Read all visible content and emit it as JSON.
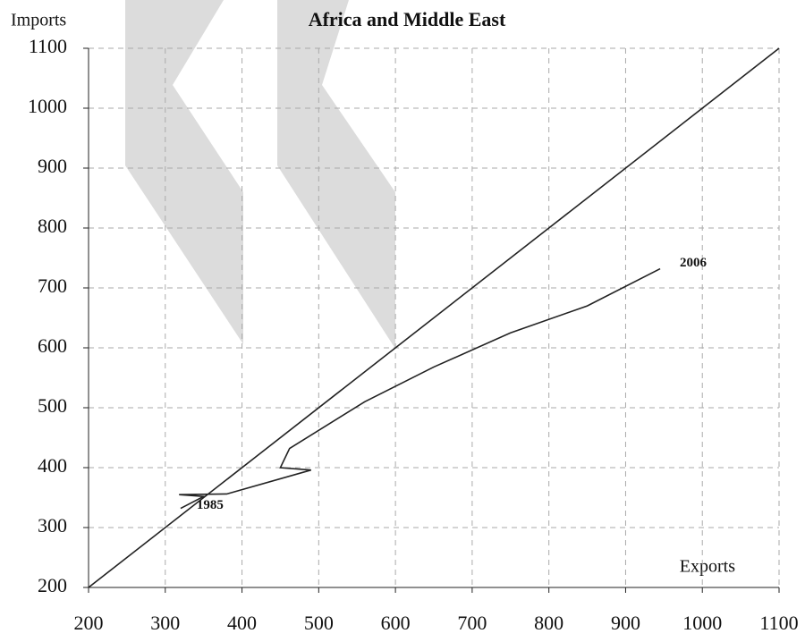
{
  "chart_data": {
    "type": "line",
    "title": "Africa and Middle East",
    "y_label": "Imports",
    "x_label": "Exports",
    "series": [
      {
        "color": "#222222",
        "x": [
          200,
          1100
        ],
        "values": [
          200,
          1100
        ]
      },
      {
        "color": "#222222",
        "x": [
          320,
          350,
          318,
          380,
          490,
          450,
          462,
          560,
          650,
          750,
          850,
          945
        ],
        "values": [
          332,
          352,
          355,
          356,
          396,
          400,
          432,
          510,
          568,
          625,
          670,
          732
        ]
      }
    ],
    "annotations": [
      {
        "text": "1985",
        "series": 1,
        "point": 0
      },
      {
        "text": "2006",
        "series": 1,
        "point": 11
      }
    ],
    "xlim": [
      200,
      1100
    ],
    "ylim": [
      200,
      1100
    ],
    "xticks": [
      200,
      300,
      400,
      500,
      600,
      700,
      800,
      900,
      1000,
      1100
    ],
    "yticks": [
      200,
      300,
      400,
      500,
      600,
      700,
      800,
      900,
      1000,
      1100
    ],
    "grid": true
  }
}
